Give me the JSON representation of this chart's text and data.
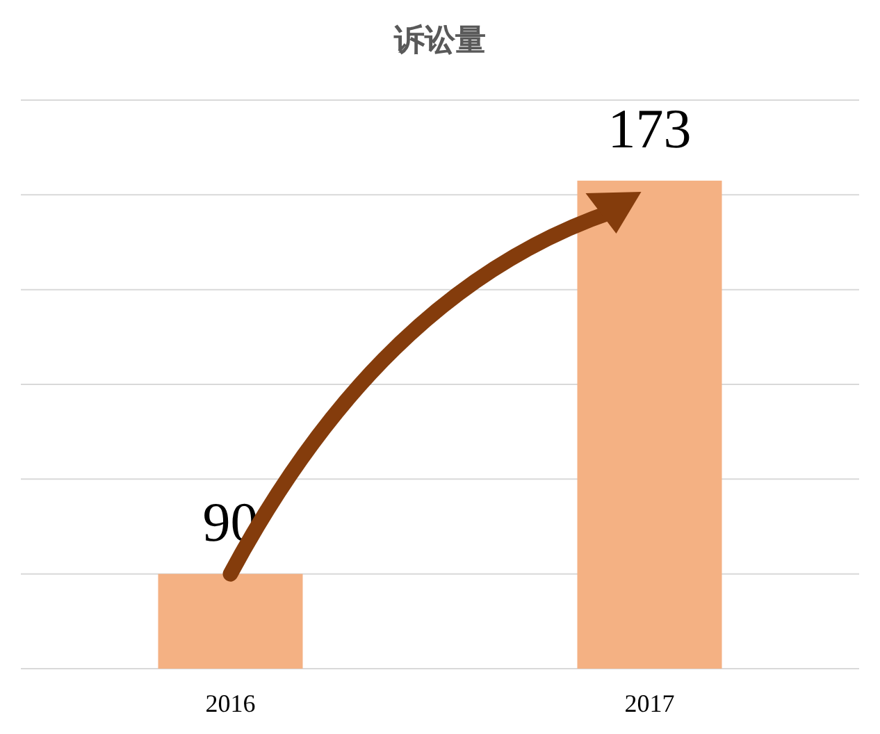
{
  "chart_data": {
    "type": "bar",
    "title": "诉讼量",
    "categories": [
      "2016",
      "2017"
    ],
    "values": [
      90,
      173
    ],
    "color": "#f4b183",
    "ylim": [
      70,
      190
    ],
    "yticks": [
      {
        "value": 70,
        "label": null
      },
      {
        "value": 90,
        "label": null
      },
      {
        "value": 110,
        "label": null
      },
      {
        "value": 130,
        "label": null
      },
      {
        "value": 150,
        "label": null
      },
      {
        "value": 170,
        "label": null
      },
      {
        "value": 190,
        "label": null
      }
    ],
    "grid": "y",
    "data_labels": true
  }
}
